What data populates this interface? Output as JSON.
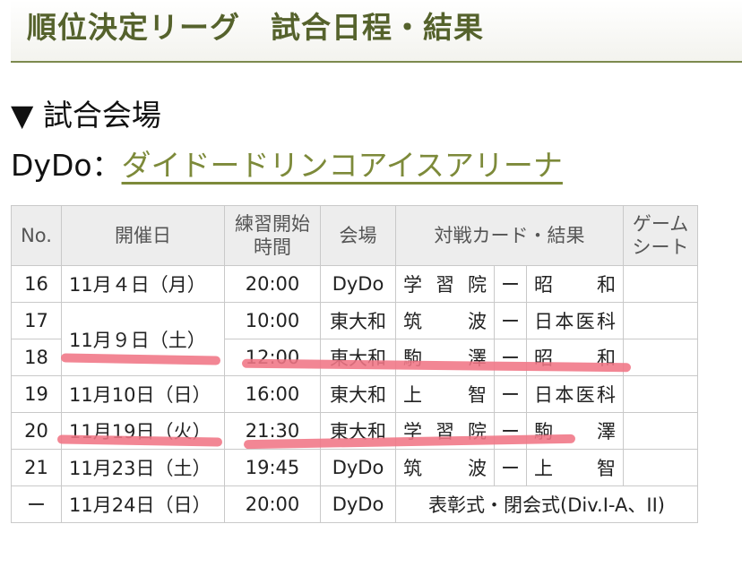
{
  "header": {
    "title": "順位決定リーグ　試合日程・結果"
  },
  "venue": {
    "heading": "▼ 試合会場",
    "label": "DyDo：",
    "link_text": "ダイドードリンコアイスアリーナ "
  },
  "table": {
    "headers": {
      "no": "No.",
      "date": "開催日",
      "time_line1": "練習開始",
      "time_line2": "時間",
      "venue": "会場",
      "match": "対戦カード・結果",
      "sheet_line1": "ゲーム",
      "sheet_line2": "シート"
    },
    "rows": [
      {
        "no": "16",
        "date": "11月４日（月）",
        "time": "20:00",
        "venue": "DyDo",
        "home": "学習院",
        "sep": "ー",
        "away": "昭　和"
      },
      {
        "no": "17",
        "date": "11月９日（土）",
        "time": "10:00",
        "venue": "東大和",
        "home": "筑　波",
        "sep": "ー",
        "away": "日本医科"
      },
      {
        "no": "18",
        "time": "12:00",
        "venue": "東大和",
        "home": "駒　澤",
        "sep": "ー",
        "away": "昭　和"
      },
      {
        "no": "19",
        "date": "11月10日（日）",
        "time": "16:00",
        "venue": "東大和",
        "home": "上　智",
        "sep": "ー",
        "away": "日本医科"
      },
      {
        "no": "20",
        "date": "11月19日（火）",
        "time": "21:30",
        "venue": "東大和",
        "home": "学習院",
        "sep": "ー",
        "away": "駒　澤"
      },
      {
        "no": "21",
        "date": "11月23日（土）",
        "time": "19:45",
        "venue": "DyDo",
        "home": "筑　波",
        "sep": "ー",
        "away": "上　智"
      },
      {
        "no": "ー",
        "date": "11月24日（日）",
        "time": "20:00",
        "venue": "DyDo",
        "event": "表彰式・閉会式(Div.I-A、II)"
      }
    ]
  },
  "annotations": {
    "highlight_color": "#f07585",
    "strikethrough_rows": [
      "18",
      "20"
    ]
  }
}
